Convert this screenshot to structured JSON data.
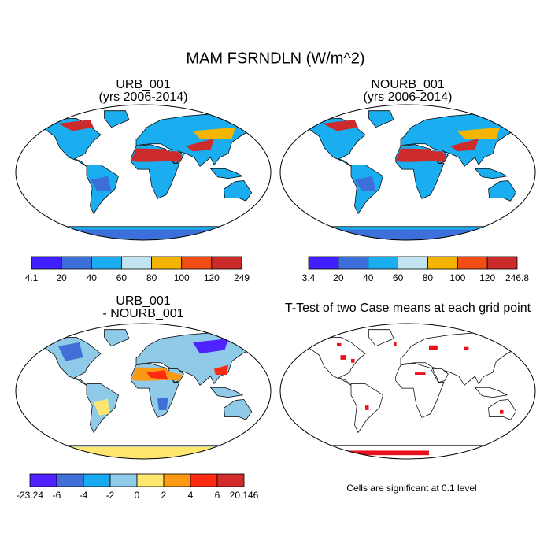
{
  "title": "MAM FSRNDLN (W/m^2)",
  "panels": [
    {
      "title": [
        "URB_001",
        "(yrs 2006-2014)"
      ],
      "colorbar": {
        "colors": [
          "#3f1fff",
          "#3c6fd9",
          "#1aaef0",
          "#c0e4f0",
          "#f4b400",
          "#f04e14",
          "#cc2b2b"
        ],
        "labels": [
          "4.1",
          "20",
          "40",
          "60",
          "80",
          "100",
          "120",
          "249"
        ]
      }
    },
    {
      "title": [
        "NOURB_001",
        "(yrs 2006-2014)"
      ],
      "colorbar": {
        "colors": [
          "#3f1fff",
          "#3c6fd9",
          "#1aaef0",
          "#c0e4f0",
          "#f4b400",
          "#f04e14",
          "#cc2b2b"
        ],
        "labels": [
          "3.4",
          "20",
          "40",
          "60",
          "80",
          "100",
          "120",
          "246.8"
        ]
      }
    },
    {
      "title": [
        "URB_001",
        "- NOURB_001"
      ],
      "colorbar": {
        "colors": [
          "#4f22ff",
          "#3f6fd7",
          "#18aaf0",
          "#8fcbe8",
          "#ffe66e",
          "#f99a12",
          "#ff2a10",
          "#d22c2c"
        ],
        "labels": [
          "-23.24",
          "-6",
          "-4",
          "-2",
          "0",
          "2",
          "4",
          "6",
          "20.146"
        ]
      }
    },
    {
      "title": [
        "T-Test of two Case means at each grid point"
      ]
    }
  ],
  "note": "Cells are significant at 0.1 level"
}
